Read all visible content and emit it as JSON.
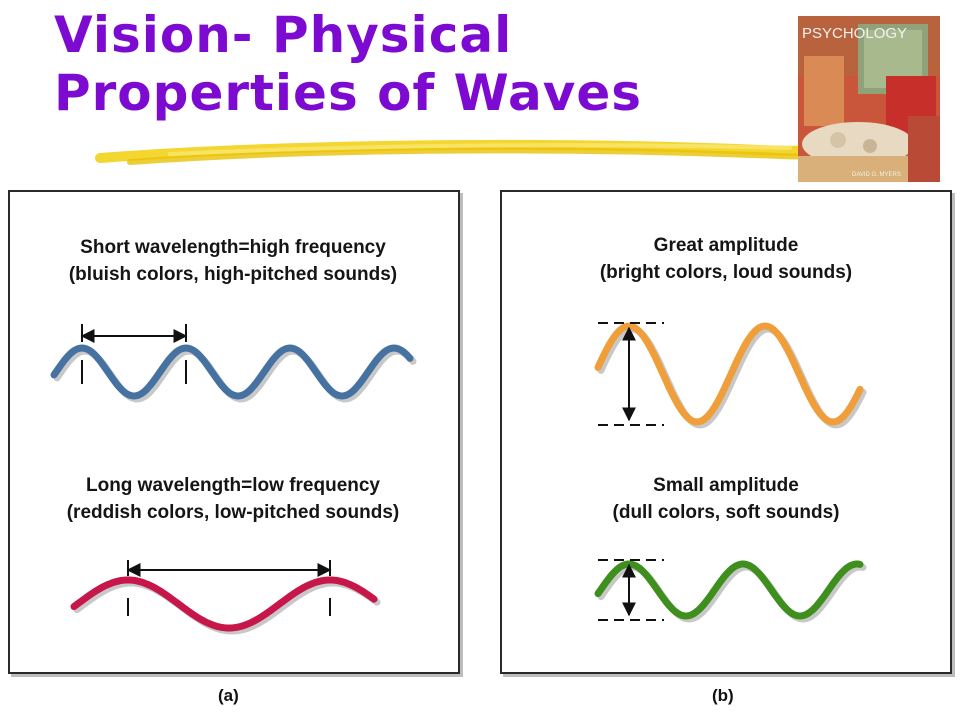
{
  "title": {
    "line1": "Vision-  Physical",
    "line2": "Properties of Waves"
  },
  "book_cover": {
    "title": "PSYCHOLOGY",
    "author": "DAVID G. MYERS"
  },
  "panel_a": {
    "label": "(a)",
    "short": {
      "line1": "Short wavelength=high frequency",
      "line2": "(bluish colors, high-pitched sounds)",
      "color": "#4672a2"
    },
    "long": {
      "line1": "Long wavelength=low frequency",
      "line2": "(reddish colors, low-pitched sounds)",
      "color": "#c7174a"
    }
  },
  "panel_b": {
    "label": "(b)",
    "great": {
      "line1": "Great amplitude",
      "line2": "(bright colors, loud sounds)",
      "color": "#ef9e3a"
    },
    "small": {
      "line1": "Small amplitude",
      "line2": "(dull colors, soft sounds)",
      "color": "#3f8f1e"
    }
  },
  "colors": {
    "title": "#7d0ad0",
    "highlighter": "#f3d21a"
  }
}
